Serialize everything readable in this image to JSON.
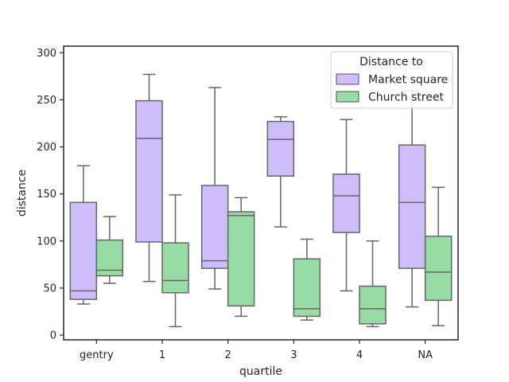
{
  "chart_data": {
    "type": "box",
    "xlabel": "quartile",
    "ylabel": "distance",
    "ylim": [
      -5,
      307
    ],
    "yticks": [
      0,
      50,
      100,
      150,
      200,
      250,
      300
    ],
    "categories": [
      "gentry",
      "1",
      "2",
      "3",
      "4",
      "NA"
    ],
    "legend": {
      "title": "Distance to",
      "placement": "top-right"
    },
    "series": [
      {
        "name": "Market square",
        "color": "#cdbdfb",
        "boxes": [
          {
            "whisker_low": 33,
            "q1": 38,
            "median": 47,
            "q3": 141,
            "whisker_high": 180
          },
          {
            "whisker_low": 57,
            "q1": 99,
            "median": 209,
            "q3": 249,
            "whisker_high": 277
          },
          {
            "whisker_low": 49,
            "q1": 71,
            "median": 79,
            "q3": 159,
            "whisker_high": 263
          },
          {
            "whisker_low": 115,
            "q1": 169,
            "median": 208,
            "q3": 227,
            "whisker_high": 232
          },
          {
            "whisker_low": 47,
            "q1": 109,
            "median": 148,
            "q3": 171,
            "whisker_high": 229
          },
          {
            "whisker_low": 30,
            "q1": 71,
            "median": 141,
            "q3": 202,
            "whisker_high": 260
          }
        ]
      },
      {
        "name": "Church street",
        "color": "#97dba5",
        "boxes": [
          {
            "whisker_low": 55,
            "q1": 63,
            "median": 69,
            "q3": 101,
            "whisker_high": 126
          },
          {
            "whisker_low": 9,
            "q1": 45,
            "median": 58,
            "q3": 98,
            "whisker_high": 149
          },
          {
            "whisker_low": 20,
            "q1": 31,
            "median": 127,
            "q3": 131,
            "whisker_high": 146
          },
          {
            "whisker_low": 16,
            "q1": 20,
            "median": 28,
            "q3": 81,
            "whisker_high": 102
          },
          {
            "whisker_low": 9,
            "q1": 12,
            "median": 28,
            "q3": 52,
            "whisker_high": 100
          },
          {
            "whisker_low": 10,
            "q1": 37,
            "median": 67,
            "q3": 105,
            "whisker_high": 157
          }
        ]
      }
    ]
  }
}
